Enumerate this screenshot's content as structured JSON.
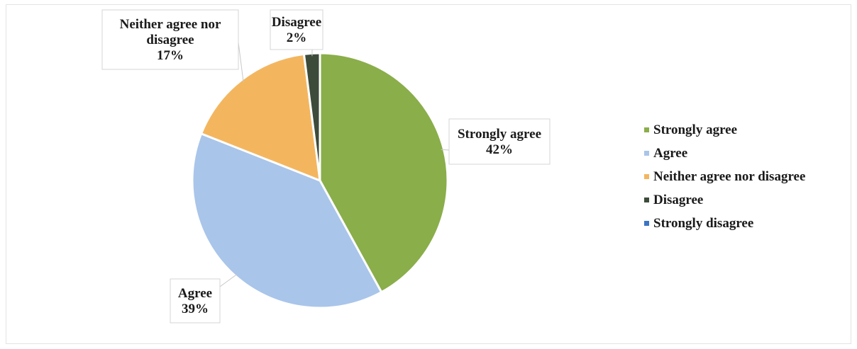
{
  "chart_data": {
    "type": "pie",
    "title": "",
    "categories": [
      "Strongly agree",
      "Agree",
      "Neither agree nor disagree",
      "Disagree",
      "Strongly disagree"
    ],
    "values": [
      42,
      39,
      17,
      2,
      0
    ],
    "value_labels": [
      "42%",
      "39%",
      "17%",
      "2%",
      ""
    ],
    "colors": [
      "#8aae4a",
      "#a9c5ea",
      "#f3b65f",
      "#3d4b3a",
      "#3b74c4"
    ],
    "legend_position": "right",
    "start_angle": "top",
    "direction": "clockwise",
    "data_labels": [
      {
        "lines": [
          "Strongly agree",
          "42%"
        ]
      },
      {
        "lines": [
          "Agree",
          "39%"
        ]
      },
      {
        "lines": [
          "Neither agree nor",
          "disagree",
          "17%"
        ]
      },
      {
        "lines": [
          "Disagree",
          "2%"
        ]
      },
      null
    ]
  }
}
